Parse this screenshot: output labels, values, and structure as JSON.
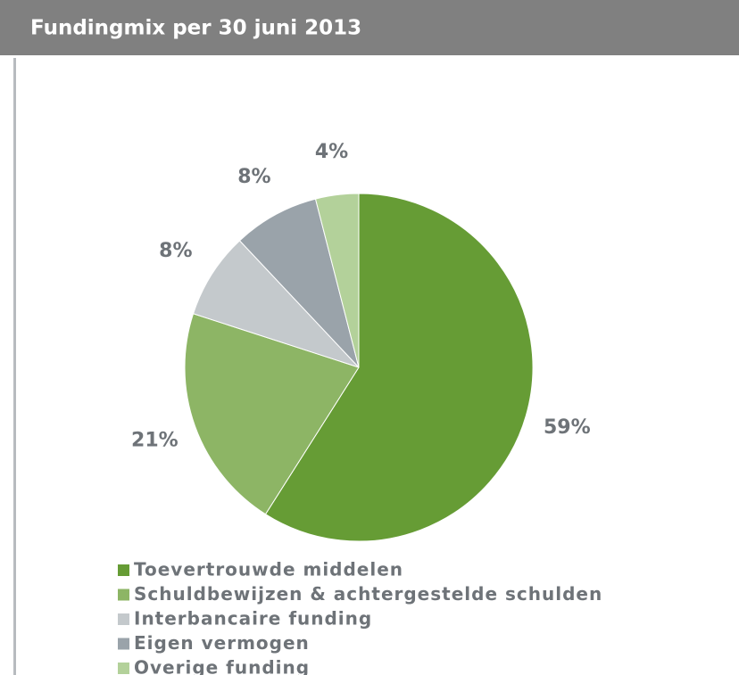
{
  "chart_data": {
    "type": "pie",
    "title": "Fundingmix per 30 juni 2013",
    "categories": [
      "Toevertrouwde middelen",
      "Schuldbewijzen & achtergestelde schulden",
      "Interbancaire funding",
      "Eigen vermogen",
      "Overige funding"
    ],
    "values": [
      59,
      21,
      8,
      8,
      4
    ],
    "value_labels": [
      "59%",
      "21%",
      "8%",
      "8%",
      "4%"
    ],
    "colors": [
      "#669c35",
      "#8db565",
      "#c4c9cc",
      "#9aa3aa",
      "#b3d19a"
    ],
    "legend": "bottom"
  }
}
